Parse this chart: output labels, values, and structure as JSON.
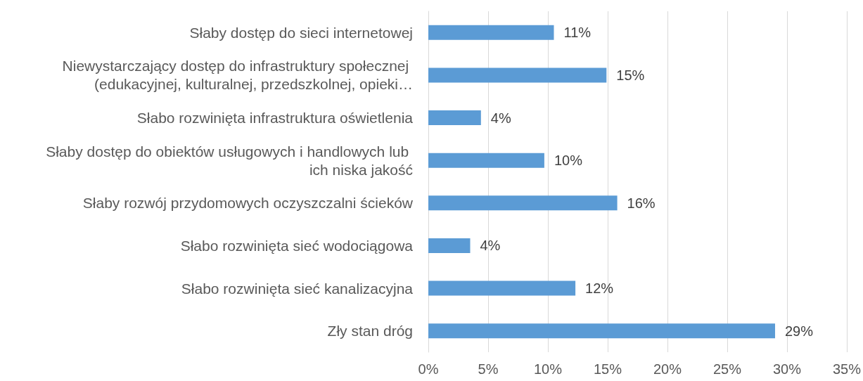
{
  "chart_data": {
    "type": "bar",
    "orientation": "horizontal",
    "categories": [
      "Słaby dostęp do sieci internetowej",
      "Niewystarczający dostęp do infrastruktury społecznej (edukacyjnej, kulturalnej, przedszkolnej, opieki…",
      "Słabo rozwinięta infrastruktura oświetlenia",
      "Słaby dostęp do obiektów usługowych i handlowych lub ich niska jakość",
      "Słaby rozwój przydomowych oczyszczalni ścieków",
      "Słabo rozwinięta sieć wodociągowa",
      "Słabo rozwinięta sieć kanalizacyjna",
      "Zły stan dróg"
    ],
    "values": [
      10.5,
      14.9,
      4.4,
      9.7,
      15.8,
      3.5,
      12.3,
      29.0
    ],
    "value_labels": [
      "11%",
      "15%",
      "4%",
      "10%",
      "16%",
      "4%",
      "12%",
      "29%"
    ],
    "color": "#5b9bd5",
    "xlim": [
      0,
      35
    ],
    "xticks": [
      {
        "value": 0,
        "label": "0%"
      },
      {
        "value": 5,
        "label": "5%"
      },
      {
        "value": 10,
        "label": "10%"
      },
      {
        "value": 15,
        "label": "15%"
      },
      {
        "value": 20,
        "label": "20%"
      },
      {
        "value": 25,
        "label": "25%"
      },
      {
        "value": 30,
        "label": "30%"
      },
      {
        "value": 35,
        "label": "35%"
      }
    ],
    "grid": "x"
  }
}
